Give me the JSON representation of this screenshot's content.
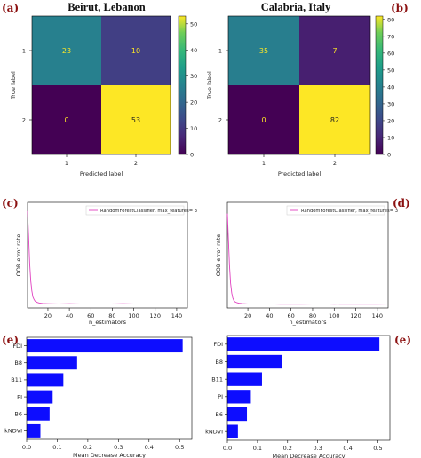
{
  "panel_letters": {
    "a": "(a)",
    "b": "(b)",
    "c": "(c)",
    "d": "(d)",
    "e_left": "(e)",
    "e_right": "(e)"
  },
  "colors": {
    "bar": "#0d0dff",
    "line": "#e040c0",
    "letter": "#8b1010"
  },
  "chart_data": [
    {
      "type": "heatmap",
      "id": "cm_beirut",
      "title": "Beirut, Lebanon",
      "xlabel": "Predicted label",
      "ylabel": "True label",
      "x_categories": [
        "1",
        "2"
      ],
      "y_categories": [
        "1",
        "2"
      ],
      "values": [
        [
          23,
          10
        ],
        [
          0,
          53
        ]
      ],
      "colorbar_ticks": [
        "0",
        "10",
        "20",
        "30",
        "40",
        "50"
      ],
      "colorbar_range": [
        0,
        53
      ],
      "colormap": "viridis"
    },
    {
      "type": "heatmap",
      "id": "cm_calabria",
      "title": "Calabria, Italy",
      "xlabel": "Predicted label",
      "ylabel": "True label",
      "x_categories": [
        "1",
        "2"
      ],
      "y_categories": [
        "1",
        "2"
      ],
      "values": [
        [
          35,
          7
        ],
        [
          0,
          82
        ]
      ],
      "colorbar_ticks": [
        "0",
        "10",
        "20",
        "30",
        "40",
        "50",
        "60",
        "70",
        "80"
      ],
      "colorbar_range": [
        0,
        82
      ],
      "colormap": "viridis"
    },
    {
      "type": "line",
      "id": "oob_beirut",
      "xlabel": "n_estimators",
      "ylabel": "OOB error rate",
      "xlim": [
        1,
        150
      ],
      "ylim": [
        0,
        0.85
      ],
      "xticks": [
        "20",
        "40",
        "60",
        "80",
        "100",
        "120",
        "140"
      ],
      "legend": "top-right",
      "series": [
        {
          "name": "RandomForestClassifier, max_features= 3",
          "x": [
            1,
            2,
            3,
            4,
            5,
            6,
            7,
            8,
            10,
            12,
            15,
            20,
            30,
            40,
            50,
            60,
            70,
            80,
            90,
            100,
            110,
            120,
            130,
            140,
            150
          ],
          "y": [
            0.78,
            0.58,
            0.36,
            0.22,
            0.14,
            0.09,
            0.07,
            0.055,
            0.045,
            0.04,
            0.036,
            0.034,
            0.033,
            0.034,
            0.032,
            0.033,
            0.032,
            0.033,
            0.034,
            0.032,
            0.033,
            0.032,
            0.033,
            0.032,
            0.033
          ]
        }
      ]
    },
    {
      "type": "line",
      "id": "oob_calabria",
      "xlabel": "n_estimators",
      "ylabel": "OOB error rate",
      "xlim": [
        1,
        150
      ],
      "ylim": [
        0,
        0.85
      ],
      "xticks": [
        "20",
        "40",
        "60",
        "80",
        "100",
        "120",
        "140"
      ],
      "legend": "top-right",
      "series": [
        {
          "name": "RandomForestClassifier, max_features= 3",
          "x": [
            1,
            2,
            3,
            4,
            5,
            6,
            7,
            8,
            10,
            12,
            15,
            20,
            30,
            40,
            50,
            60,
            70,
            80,
            90,
            100,
            110,
            120,
            130,
            140,
            150
          ],
          "y": [
            0.76,
            0.55,
            0.34,
            0.2,
            0.12,
            0.08,
            0.06,
            0.05,
            0.042,
            0.038,
            0.035,
            0.033,
            0.032,
            0.033,
            0.031,
            0.032,
            0.031,
            0.032,
            0.033,
            0.031,
            0.032,
            0.031,
            0.032,
            0.031,
            0.032
          ]
        }
      ]
    },
    {
      "type": "bar",
      "id": "imp_beirut",
      "orientation": "horizontal",
      "xlabel": "Mean Decrease Accuracy",
      "categories": [
        "FDI",
        "B8",
        "B11",
        "PI",
        "B6",
        "kNDVI"
      ],
      "values": [
        0.51,
        0.165,
        0.12,
        0.085,
        0.075,
        0.045
      ],
      "xlim": [
        0,
        0.54
      ],
      "xticks": [
        "0.0",
        "0.1",
        "0.2",
        "0.3",
        "0.4",
        "0.5"
      ]
    },
    {
      "type": "bar",
      "id": "imp_calabria",
      "orientation": "horizontal",
      "xlabel": "Mean Decrease Accuracy",
      "categories": [
        "FDI",
        "B8",
        "B11",
        "PI",
        "B6",
        "kNDVI"
      ],
      "values": [
        0.505,
        0.18,
        0.115,
        0.078,
        0.065,
        0.035
      ],
      "xlim": [
        0,
        0.54
      ],
      "xticks": [
        "0.0",
        "0.1",
        "0.2",
        "0.3",
        "0.4",
        "0.5"
      ]
    }
  ]
}
